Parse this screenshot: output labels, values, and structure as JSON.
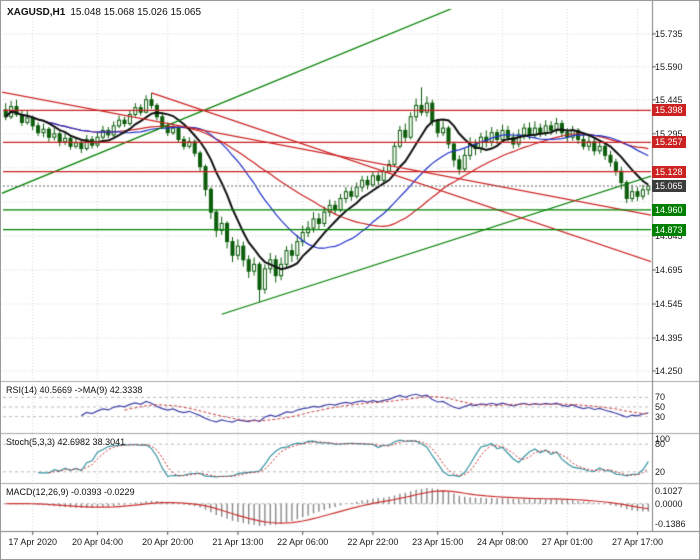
{
  "header": {
    "symbol_period": "XAGUSD,H1",
    "ohlc": "15.048 15.068 15.026 15.065"
  },
  "colors": {
    "up_fill": "#ffffff",
    "down_fill": "#0b5d0b",
    "candle_outline": "#0b5d0b",
    "ma_fast": "#111111",
    "ma_mid": "#2233cc",
    "ma_slow": "#cc2222",
    "resistance": "#cc2222",
    "support": "#008000",
    "bid_line": "#666666",
    "grid": "#d8d8d8",
    "separator": "#a8a8a8",
    "axis_line": "#808080",
    "rsi": "#4444aa",
    "rsi_ma": "#cc4444",
    "stoch_k": "#3a95a5",
    "stoch_d": "#cc3333",
    "macd_hist": "#8a8a8a",
    "macd_signal": "#cc3333",
    "tag_current": "#3c3c3c"
  },
  "price_axis": {
    "tick_prices": [
      15.735,
      15.59,
      15.445,
      15.295,
      14.845,
      14.695,
      14.545,
      14.395,
      14.25
    ],
    "grid_prices": [
      15.735,
      15.59,
      15.445,
      15.295,
      15.145,
      14.995,
      14.845,
      14.695,
      14.545,
      14.395,
      14.25
    ]
  },
  "levels": {
    "resistance": [
      {
        "price": 15.398,
        "label": "15.398"
      },
      {
        "price": 15.257,
        "label": "15.257"
      },
      {
        "price": 15.128,
        "label": "15.128"
      }
    ],
    "support": [
      {
        "price": 14.96,
        "label": "14.960"
      },
      {
        "price": 14.873,
        "label": "14.873"
      }
    ],
    "current": {
      "price": 15.065,
      "label": "15.065"
    }
  },
  "trendlines": [
    {
      "name": "ascending-trendline-1",
      "color": "#008000",
      "i1": -1,
      "p1": 15.03,
      "i2": 86,
      "p2": 15.88
    },
    {
      "name": "ascending-trendline-2",
      "color": "#008000",
      "i1": 40,
      "p1": 14.5,
      "i2": 121,
      "p2": 15.12
    },
    {
      "name": "descending-trendline-1",
      "color": "#cc2222",
      "i1": -1,
      "p1": 15.48,
      "i2": 121,
      "p2": 14.93
    },
    {
      "name": "descending-trendline-2",
      "color": "#cc2222",
      "i1": 27,
      "p1": 15.475,
      "i2": 121,
      "p2": 14.72
    }
  ],
  "time_axis": [
    {
      "label": "17 Apr 2020",
      "i": 5
    },
    {
      "label": "20 Apr 04:00",
      "i": 17
    },
    {
      "label": "20 Apr 20:00",
      "i": 30
    },
    {
      "label": "21 Apr 13:00",
      "i": 43
    },
    {
      "label": "22 Apr 06:00",
      "i": 55
    },
    {
      "label": "22 Apr 22:00",
      "i": 68
    },
    {
      "label": "23 Apr 15:00",
      "i": 80
    },
    {
      "label": "24 Apr 08:00",
      "i": 92
    },
    {
      "label": "27 Apr 01:00",
      "i": 104
    },
    {
      "label": "27 Apr 17:00",
      "i": 117
    }
  ],
  "indicators": {
    "rsi": {
      "label": "RSI(14) 40.5669 ->MA(9) 42.3338",
      "period": 14,
      "ma_period": 9,
      "levels": [
        70,
        50,
        30
      ]
    },
    "stoch": {
      "label": "Stoch(5,3,3) 42.6982 38.3041",
      "k": 5,
      "slow": 3,
      "d": 3,
      "levels": [
        100,
        80,
        20
      ]
    },
    "macd": {
      "label": "MACD(12,26,9) -0.0393 -0.0229",
      "fast": 12,
      "slow": 26,
      "signal": 9,
      "scale_labels": {
        "top": "0.1027",
        "zero": "0.0000",
        "bottom": "-0.1386"
      }
    }
  },
  "chart_data": {
    "type": "candlestick",
    "title": "XAGUSD H1",
    "symbol": "XAGUSD",
    "timeframe": "H1",
    "ylim": [
      14.2,
      15.88
    ],
    "ma_periods": [
      8,
      21,
      34
    ],
    "ohlc": [
      [
        15.4,
        15.43,
        15.355,
        15.37
      ],
      [
        15.37,
        15.44,
        15.36,
        15.415
      ],
      [
        15.415,
        15.445,
        15.37,
        15.38
      ],
      [
        15.38,
        15.4,
        15.33,
        15.345
      ],
      [
        15.345,
        15.395,
        15.335,
        15.365
      ],
      [
        15.365,
        15.375,
        15.31,
        15.33
      ],
      [
        15.33,
        15.345,
        15.285,
        15.3
      ],
      [
        15.3,
        15.34,
        15.28,
        15.315
      ],
      [
        15.315,
        15.325,
        15.26,
        15.28
      ],
      [
        15.28,
        15.32,
        15.265,
        15.295
      ],
      [
        15.295,
        15.305,
        15.24,
        15.26
      ],
      [
        15.26,
        15.3,
        15.245,
        15.275
      ],
      [
        15.275,
        15.285,
        15.225,
        15.24
      ],
      [
        15.24,
        15.28,
        15.23,
        15.255
      ],
      [
        15.255,
        15.27,
        15.21,
        15.23
      ],
      [
        15.23,
        15.29,
        15.22,
        15.27
      ],
      [
        15.27,
        15.285,
        15.23,
        15.245
      ],
      [
        15.245,
        15.3,
        15.235,
        15.28
      ],
      [
        15.28,
        15.33,
        15.27,
        15.31
      ],
      [
        15.31,
        15.325,
        15.275,
        15.29
      ],
      [
        15.29,
        15.35,
        15.28,
        15.33
      ],
      [
        15.33,
        15.375,
        15.32,
        15.355
      ],
      [
        15.355,
        15.37,
        15.325,
        15.34
      ],
      [
        15.34,
        15.4,
        15.33,
        15.38
      ],
      [
        15.38,
        15.43,
        15.37,
        15.41
      ],
      [
        15.41,
        15.425,
        15.375,
        15.39
      ],
      [
        15.39,
        15.465,
        15.385,
        15.445
      ],
      [
        15.445,
        15.475,
        15.405,
        15.42
      ],
      [
        15.42,
        15.43,
        15.355,
        15.37
      ],
      [
        15.37,
        15.385,
        15.315,
        15.33
      ],
      [
        15.33,
        15.345,
        15.285,
        15.3
      ],
      [
        15.3,
        15.34,
        15.29,
        15.32
      ],
      [
        15.32,
        15.33,
        15.255,
        15.27
      ],
      [
        15.27,
        15.285,
        15.225,
        15.24
      ],
      [
        15.24,
        15.28,
        15.23,
        15.26
      ],
      [
        15.26,
        15.27,
        15.195,
        15.21
      ],
      [
        15.21,
        15.22,
        15.13,
        15.15
      ],
      [
        15.15,
        15.16,
        15.02,
        15.05
      ],
      [
        15.05,
        15.06,
        14.92,
        14.95
      ],
      [
        14.95,
        14.96,
        14.84,
        14.87
      ],
      [
        14.87,
        14.93,
        14.85,
        14.9
      ],
      [
        14.9,
        14.91,
        14.79,
        14.82
      ],
      [
        14.82,
        14.84,
        14.73,
        14.76
      ],
      [
        14.76,
        14.83,
        14.74,
        14.8
      ],
      [
        14.8,
        14.82,
        14.71,
        14.74
      ],
      [
        14.74,
        14.76,
        14.66,
        14.69
      ],
      [
        14.69,
        14.75,
        14.67,
        14.72
      ],
      [
        14.72,
        14.73,
        14.555,
        14.61
      ],
      [
        14.61,
        14.72,
        14.59,
        14.7
      ],
      [
        14.7,
        14.77,
        14.68,
        14.74
      ],
      [
        14.74,
        14.76,
        14.64,
        14.67
      ],
      [
        14.67,
        14.75,
        14.65,
        14.72
      ],
      [
        14.72,
        14.8,
        14.7,
        14.78
      ],
      [
        14.78,
        14.81,
        14.73,
        14.76
      ],
      [
        14.76,
        14.85,
        14.74,
        14.82
      ],
      [
        14.82,
        14.89,
        14.8,
        14.86
      ],
      [
        14.86,
        14.91,
        14.84,
        14.88
      ],
      [
        14.88,
        14.95,
        14.86,
        14.92
      ],
      [
        14.92,
        14.945,
        14.875,
        14.9
      ],
      [
        14.9,
        14.975,
        14.885,
        14.95
      ],
      [
        14.95,
        15.005,
        14.93,
        14.98
      ],
      [
        14.98,
        15.0,
        14.94,
        14.96
      ],
      [
        14.96,
        15.03,
        14.95,
        15.01
      ],
      [
        15.01,
        15.06,
        14.99,
        15.04
      ],
      [
        15.04,
        15.06,
        15.0,
        15.02
      ],
      [
        15.02,
        15.08,
        15.01,
        15.06
      ],
      [
        15.06,
        15.11,
        15.04,
        15.09
      ],
      [
        15.09,
        15.11,
        15.05,
        15.07
      ],
      [
        15.07,
        15.13,
        15.06,
        15.11
      ],
      [
        15.11,
        15.125,
        15.07,
        15.09
      ],
      [
        15.09,
        15.15,
        15.08,
        15.13
      ],
      [
        15.13,
        15.18,
        15.12,
        15.16
      ],
      [
        15.16,
        15.26,
        15.15,
        15.24
      ],
      [
        15.24,
        15.33,
        15.23,
        15.31
      ],
      [
        15.31,
        15.34,
        15.26,
        15.28
      ],
      [
        15.28,
        15.39,
        15.27,
        15.37
      ],
      [
        15.37,
        15.45,
        15.35,
        15.42
      ],
      [
        15.42,
        15.5,
        15.375,
        15.39
      ],
      [
        15.39,
        15.46,
        15.37,
        15.43
      ],
      [
        15.43,
        15.445,
        15.33,
        15.35
      ],
      [
        15.35,
        15.36,
        15.28,
        15.3
      ],
      [
        15.3,
        15.35,
        15.285,
        15.32
      ],
      [
        15.32,
        15.33,
        15.23,
        15.25
      ],
      [
        15.25,
        15.26,
        15.15,
        15.18
      ],
      [
        15.18,
        15.2,
        15.115,
        15.14
      ],
      [
        15.14,
        15.23,
        15.13,
        15.2
      ],
      [
        15.2,
        15.28,
        15.18,
        15.25
      ],
      [
        15.25,
        15.27,
        15.2,
        15.23
      ],
      [
        15.23,
        15.3,
        15.21,
        15.28
      ],
      [
        15.28,
        15.31,
        15.235,
        15.26
      ],
      [
        15.26,
        15.325,
        15.24,
        15.3
      ],
      [
        15.3,
        15.315,
        15.25,
        15.27
      ],
      [
        15.27,
        15.335,
        15.255,
        15.31
      ],
      [
        15.31,
        15.33,
        15.26,
        15.28
      ],
      [
        15.28,
        15.3,
        15.23,
        15.25
      ],
      [
        15.25,
        15.315,
        15.235,
        15.29
      ],
      [
        15.29,
        15.34,
        15.27,
        15.32
      ],
      [
        15.32,
        15.345,
        15.27,
        15.29
      ],
      [
        15.29,
        15.35,
        15.275,
        15.32
      ],
      [
        15.32,
        15.34,
        15.28,
        15.3
      ],
      [
        15.3,
        15.355,
        15.285,
        15.33
      ],
      [
        15.33,
        15.35,
        15.29,
        15.31
      ],
      [
        15.31,
        15.365,
        15.295,
        15.34
      ],
      [
        15.34,
        15.355,
        15.28,
        15.3
      ],
      [
        15.3,
        15.32,
        15.26,
        15.28
      ],
      [
        15.28,
        15.33,
        15.265,
        15.31
      ],
      [
        15.31,
        15.32,
        15.25,
        15.27
      ],
      [
        15.27,
        15.29,
        15.225,
        15.24
      ],
      [
        15.24,
        15.285,
        15.22,
        15.26
      ],
      [
        15.26,
        15.275,
        15.2,
        15.22
      ],
      [
        15.22,
        15.265,
        15.205,
        15.24
      ],
      [
        15.24,
        15.255,
        15.18,
        15.2
      ],
      [
        15.2,
        15.22,
        15.15,
        15.17
      ],
      [
        15.17,
        15.185,
        15.11,
        15.13
      ],
      [
        15.13,
        15.15,
        15.05,
        15.08
      ],
      [
        15.08,
        15.09,
        14.99,
        15.01
      ],
      [
        15.01,
        15.07,
        14.995,
        15.04
      ],
      [
        15.04,
        15.06,
        15.0,
        15.02
      ],
      [
        15.02,
        15.07,
        15.005,
        15.048
      ],
      [
        15.048,
        15.068,
        15.026,
        15.065
      ]
    ]
  }
}
